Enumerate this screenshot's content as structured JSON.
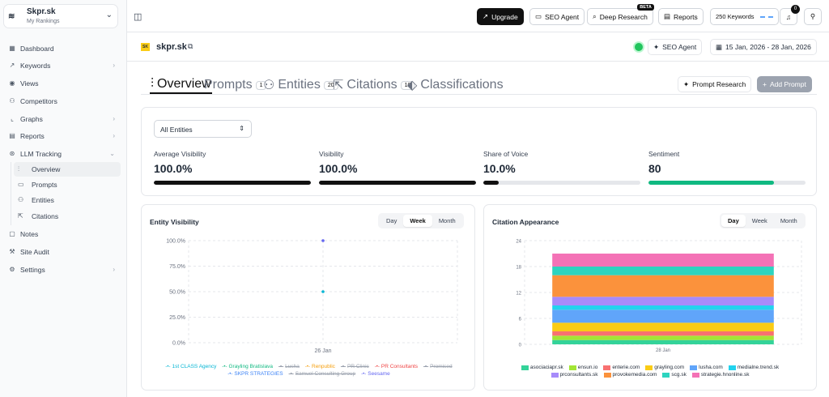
{
  "project": {
    "name": "Skpr.sk",
    "subtitle": "My Rankings"
  },
  "sidebar": {
    "items": [
      {
        "label": "Dashboard",
        "icon": "grid-icon"
      },
      {
        "label": "Keywords",
        "icon": "trend-icon",
        "arrow": "›"
      },
      {
        "label": "Views",
        "icon": "eye-icon"
      },
      {
        "label": "Competitors",
        "icon": "users-icon"
      },
      {
        "label": "Graphs",
        "icon": "chart-icon",
        "arrow": "›"
      },
      {
        "label": "Reports",
        "icon": "file-icon",
        "arrow": "›"
      },
      {
        "label": "LLM Tracking",
        "icon": "brain-icon",
        "arrow": "⌄"
      },
      {
        "label": "Notes",
        "icon": "note-icon"
      },
      {
        "label": "Site Audit",
        "icon": "wrench-icon"
      },
      {
        "label": "Settings",
        "icon": "gear-icon",
        "arrow": "›"
      }
    ],
    "sub_items": [
      {
        "label": "Overview"
      },
      {
        "label": "Prompts"
      },
      {
        "label": "Entities"
      },
      {
        "label": "Citations"
      }
    ]
  },
  "topbar": {
    "upgrade": "Upgrade",
    "seo_agent": "SEO Agent",
    "deep_research": "Deep Research",
    "beta": "BETA",
    "reports": "Reports",
    "keywords": "250 Keywords",
    "notifications": "0"
  },
  "site": {
    "name": "skpr.sk",
    "favicon_text": "SK",
    "agent_label": "SEO Agent",
    "date_range": "15 Jan, 2026 - 28 Jan, 2026"
  },
  "tabs": [
    {
      "label": "Overview"
    },
    {
      "label": "Prompts",
      "count": "1"
    },
    {
      "label": "Entities",
      "count": "20"
    },
    {
      "label": "Citations",
      "count": "10"
    },
    {
      "label": "Classifications"
    }
  ],
  "actions": {
    "prompt_research": "Prompt Research",
    "add_prompt": "Add Prompt"
  },
  "filters": {
    "entities": "All Entities"
  },
  "metrics": [
    {
      "label": "Average Visibility",
      "value": "100.0%",
      "fraction": 1.0,
      "color": "#111111"
    },
    {
      "label": "Visibility",
      "value": "100.0%",
      "fraction": 1.0,
      "color": "#111111"
    },
    {
      "label": "Share of Voice",
      "value": "10.0%",
      "fraction": 0.1,
      "color": "#111111"
    },
    {
      "label": "Sentiment",
      "value": "80",
      "fraction": 0.8,
      "color": "#10b981"
    }
  ],
  "entity_visibility": {
    "title": "Entity Visibility",
    "periods": [
      "Day",
      "Week",
      "Month"
    ],
    "selected": "Week"
  },
  "citation_appearance": {
    "title": "Citation Appearance",
    "periods": [
      "Day",
      "Week",
      "Month"
    ],
    "selected": "Day"
  },
  "chart_data": [
    {
      "type": "line",
      "title": "Entity Visibility",
      "x": [
        "26 Jan"
      ],
      "y_ticks": [
        "100.0%",
        "75.0%",
        "50.0%",
        "25.0%",
        "0.0%"
      ],
      "ylim": [
        0,
        100
      ],
      "grid": true,
      "legend_position": "bottom",
      "series": [
        {
          "name": "1st CLASS Agency",
          "color": "#06b6d4",
          "values": [
            50
          ],
          "hidden": false
        },
        {
          "name": "Grayling Bratislava",
          "color": "#10b981",
          "values": [
            null
          ],
          "hidden": false
        },
        {
          "name": "Lusha",
          "color": "#9ca3af",
          "values": [
            null
          ],
          "hidden": true
        },
        {
          "name": "Renpublic",
          "color": "#f59e0b",
          "values": [
            null
          ],
          "hidden": false
        },
        {
          "name": "PR Clinic",
          "color": "#9ca3af",
          "values": [
            null
          ],
          "hidden": true
        },
        {
          "name": "PR Consultants",
          "color": "#ef4444",
          "values": [
            null
          ],
          "hidden": false
        },
        {
          "name": "Promised",
          "color": "#9ca3af",
          "values": [
            null
          ],
          "hidden": true
        },
        {
          "name": "SKPR STRATEGIES",
          "color": "#3b82f6",
          "values": [
            null
          ],
          "hidden": false
        },
        {
          "name": "Samuel Consulting Group",
          "color": "#9ca3af",
          "values": [
            null
          ],
          "hidden": true
        },
        {
          "name": "Seesame",
          "color": "#6366f1",
          "values": [
            100
          ],
          "hidden": false
        }
      ]
    },
    {
      "type": "bar",
      "stacked": true,
      "title": "Citation Appearance",
      "categories": [
        "28 Jan"
      ],
      "y_ticks": [
        "24",
        "18",
        "12",
        "6",
        "0"
      ],
      "ylim": [
        0,
        24
      ],
      "grid": true,
      "legend_position": "bottom",
      "series": [
        {
          "name": "asociaciapr.sk",
          "color": "#34d399",
          "values": [
            1
          ]
        },
        {
          "name": "ensun.io",
          "color": "#a3e635",
          "values": [
            1
          ]
        },
        {
          "name": "enterie.com",
          "color": "#f87171",
          "values": [
            1
          ]
        },
        {
          "name": "grayling.com",
          "color": "#facc15",
          "values": [
            2
          ]
        },
        {
          "name": "lusha.com",
          "color": "#60a5fa",
          "values": [
            3
          ]
        },
        {
          "name": "medialne.trend.sk",
          "color": "#22d3ee",
          "values": [
            1
          ]
        },
        {
          "name": "prconsultants.sk",
          "color": "#a78bfa",
          "values": [
            2
          ]
        },
        {
          "name": "provokemedia.com",
          "color": "#fb923c",
          "values": [
            5
          ]
        },
        {
          "name": "scg.sk",
          "color": "#2dd4bf",
          "values": [
            2
          ]
        },
        {
          "name": "strategie.hnonline.sk",
          "color": "#f472b6",
          "values": [
            3
          ]
        }
      ]
    }
  ]
}
